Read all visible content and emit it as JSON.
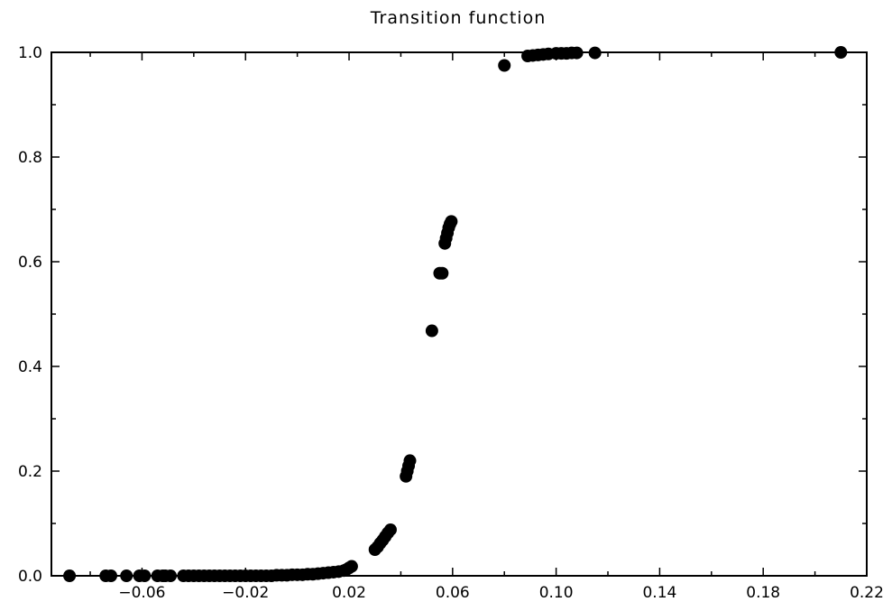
{
  "chart_data": {
    "type": "scatter",
    "title": "Transition function",
    "xlabel": "",
    "ylabel": "",
    "xlim": [
      -0.095,
      0.22
    ],
    "ylim": [
      0.0,
      1.0
    ],
    "grid": false,
    "x_ticks": [
      -0.06,
      -0.02,
      0.02,
      0.06,
      0.1,
      0.14,
      0.18,
      0.22
    ],
    "x_tick_labels": [
      "−0.06",
      "−0.02",
      "0.02",
      "0.06",
      "0.10",
      "0.14",
      "0.18",
      "0.22"
    ],
    "y_ticks": [
      0.0,
      0.2,
      0.4,
      0.6,
      0.8,
      1.0
    ],
    "y_tick_labels": [
      "0.0",
      "0.2",
      "0.4",
      "0.6",
      "0.8",
      "1.0"
    ],
    "marker_color": "#000000",
    "series": [
      {
        "points": [
          [
            -0.088,
            0.0
          ],
          [
            -0.074,
            0.0
          ],
          [
            -0.072,
            0.0
          ],
          [
            -0.066,
            0.0
          ],
          [
            -0.061,
            0.0
          ],
          [
            -0.059,
            0.0
          ],
          [
            -0.054,
            0.0
          ],
          [
            -0.052,
            0.0
          ],
          [
            -0.051,
            0.0
          ],
          [
            -0.049,
            0.0
          ],
          [
            -0.044,
            0.0
          ],
          [
            -0.042,
            0.0
          ],
          [
            -0.04,
            0.0
          ],
          [
            -0.038,
            0.0
          ],
          [
            -0.036,
            0.0
          ],
          [
            -0.034,
            0.0
          ],
          [
            -0.032,
            0.0
          ],
          [
            -0.03,
            0.0
          ],
          [
            -0.028,
            0.0
          ],
          [
            -0.026,
            0.0
          ],
          [
            -0.024,
            0.0
          ],
          [
            -0.022,
            0.0
          ],
          [
            -0.02,
            0.0
          ],
          [
            -0.018,
            0.0
          ],
          [
            -0.016,
            0.0
          ],
          [
            -0.014,
            0.0
          ],
          [
            -0.012,
            0.0
          ],
          [
            -0.01,
            0.0
          ],
          [
            -0.008,
            0.001
          ],
          [
            -0.006,
            0.001
          ],
          [
            -0.004,
            0.001
          ],
          [
            -0.002,
            0.002
          ],
          [
            0.0,
            0.002
          ],
          [
            0.002,
            0.002
          ],
          [
            0.004,
            0.003
          ],
          [
            0.006,
            0.003
          ],
          [
            0.008,
            0.004
          ],
          [
            0.01,
            0.005
          ],
          [
            0.012,
            0.006
          ],
          [
            0.014,
            0.007
          ],
          [
            0.016,
            0.008
          ],
          [
            0.018,
            0.01
          ],
          [
            0.019,
            0.012
          ],
          [
            0.02,
            0.015
          ],
          [
            0.021,
            0.018
          ],
          [
            0.03,
            0.05
          ],
          [
            0.031,
            0.055
          ],
          [
            0.032,
            0.062
          ],
          [
            0.033,
            0.068
          ],
          [
            0.034,
            0.075
          ],
          [
            0.035,
            0.082
          ],
          [
            0.036,
            0.088
          ],
          [
            0.042,
            0.19
          ],
          [
            0.0425,
            0.2
          ],
          [
            0.043,
            0.21
          ],
          [
            0.0435,
            0.22
          ],
          [
            0.052,
            0.468
          ],
          [
            0.055,
            0.578
          ],
          [
            0.056,
            0.578
          ],
          [
            0.057,
            0.635
          ],
          [
            0.0575,
            0.645
          ],
          [
            0.058,
            0.655
          ],
          [
            0.0585,
            0.665
          ],
          [
            0.059,
            0.672
          ],
          [
            0.0595,
            0.677
          ],
          [
            0.08,
            0.975
          ],
          [
            0.089,
            0.993
          ],
          [
            0.091,
            0.994
          ],
          [
            0.093,
            0.995
          ],
          [
            0.095,
            0.996
          ],
          [
            0.097,
            0.997
          ],
          [
            0.1,
            0.998
          ],
          [
            0.102,
            0.998
          ],
          [
            0.104,
            0.998
          ],
          [
            0.106,
            0.999
          ],
          [
            0.108,
            0.999
          ],
          [
            0.115,
            0.999
          ],
          [
            0.21,
            1.0
          ]
        ]
      }
    ]
  }
}
